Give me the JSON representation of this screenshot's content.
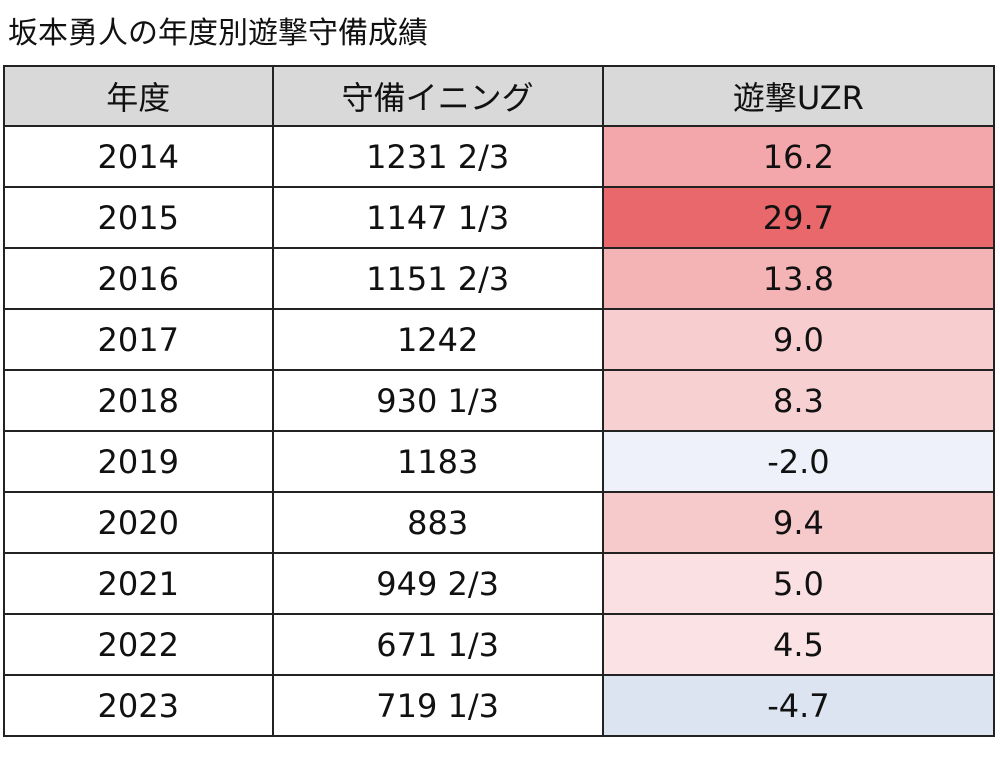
{
  "title": "坂本勇人の年度別遊撃守備成績",
  "chart_data": {
    "type": "table",
    "title": "坂本勇人の年度別遊撃守備成績",
    "columns": [
      "年度",
      "守備イニング",
      "遊撃UZR"
    ],
    "rows": [
      {
        "year": "2014",
        "innings": "1231 2/3",
        "uzr": "16.2",
        "color": "#f3a7ab"
      },
      {
        "year": "2015",
        "innings": "1147 1/3",
        "uzr": "29.7",
        "color": "#e8686b"
      },
      {
        "year": "2016",
        "innings": "1151 2/3",
        "uzr": "13.8",
        "color": "#f4b3b5"
      },
      {
        "year": "2017",
        "innings": "1242",
        "uzr": "9.0",
        "color": "#f7cdd0"
      },
      {
        "year": "2018",
        "innings": "930 1/3",
        "uzr": "8.3",
        "color": "#f7d0d2"
      },
      {
        "year": "2019",
        "innings": "1183",
        "uzr": "-2.0",
        "color": "#eef1f9"
      },
      {
        "year": "2020",
        "innings": "883",
        "uzr": "9.4",
        "color": "#f6c9cb"
      },
      {
        "year": "2021",
        "innings": "949 2/3",
        "uzr": "5.0",
        "color": "#fae0e2"
      },
      {
        "year": "2022",
        "innings": "671 1/3",
        "uzr": "4.5",
        "color": "#fbe2e4"
      },
      {
        "year": "2023",
        "innings": "719 1/3",
        "uzr": "-4.7",
        "color": "#dde4f1"
      }
    ]
  }
}
